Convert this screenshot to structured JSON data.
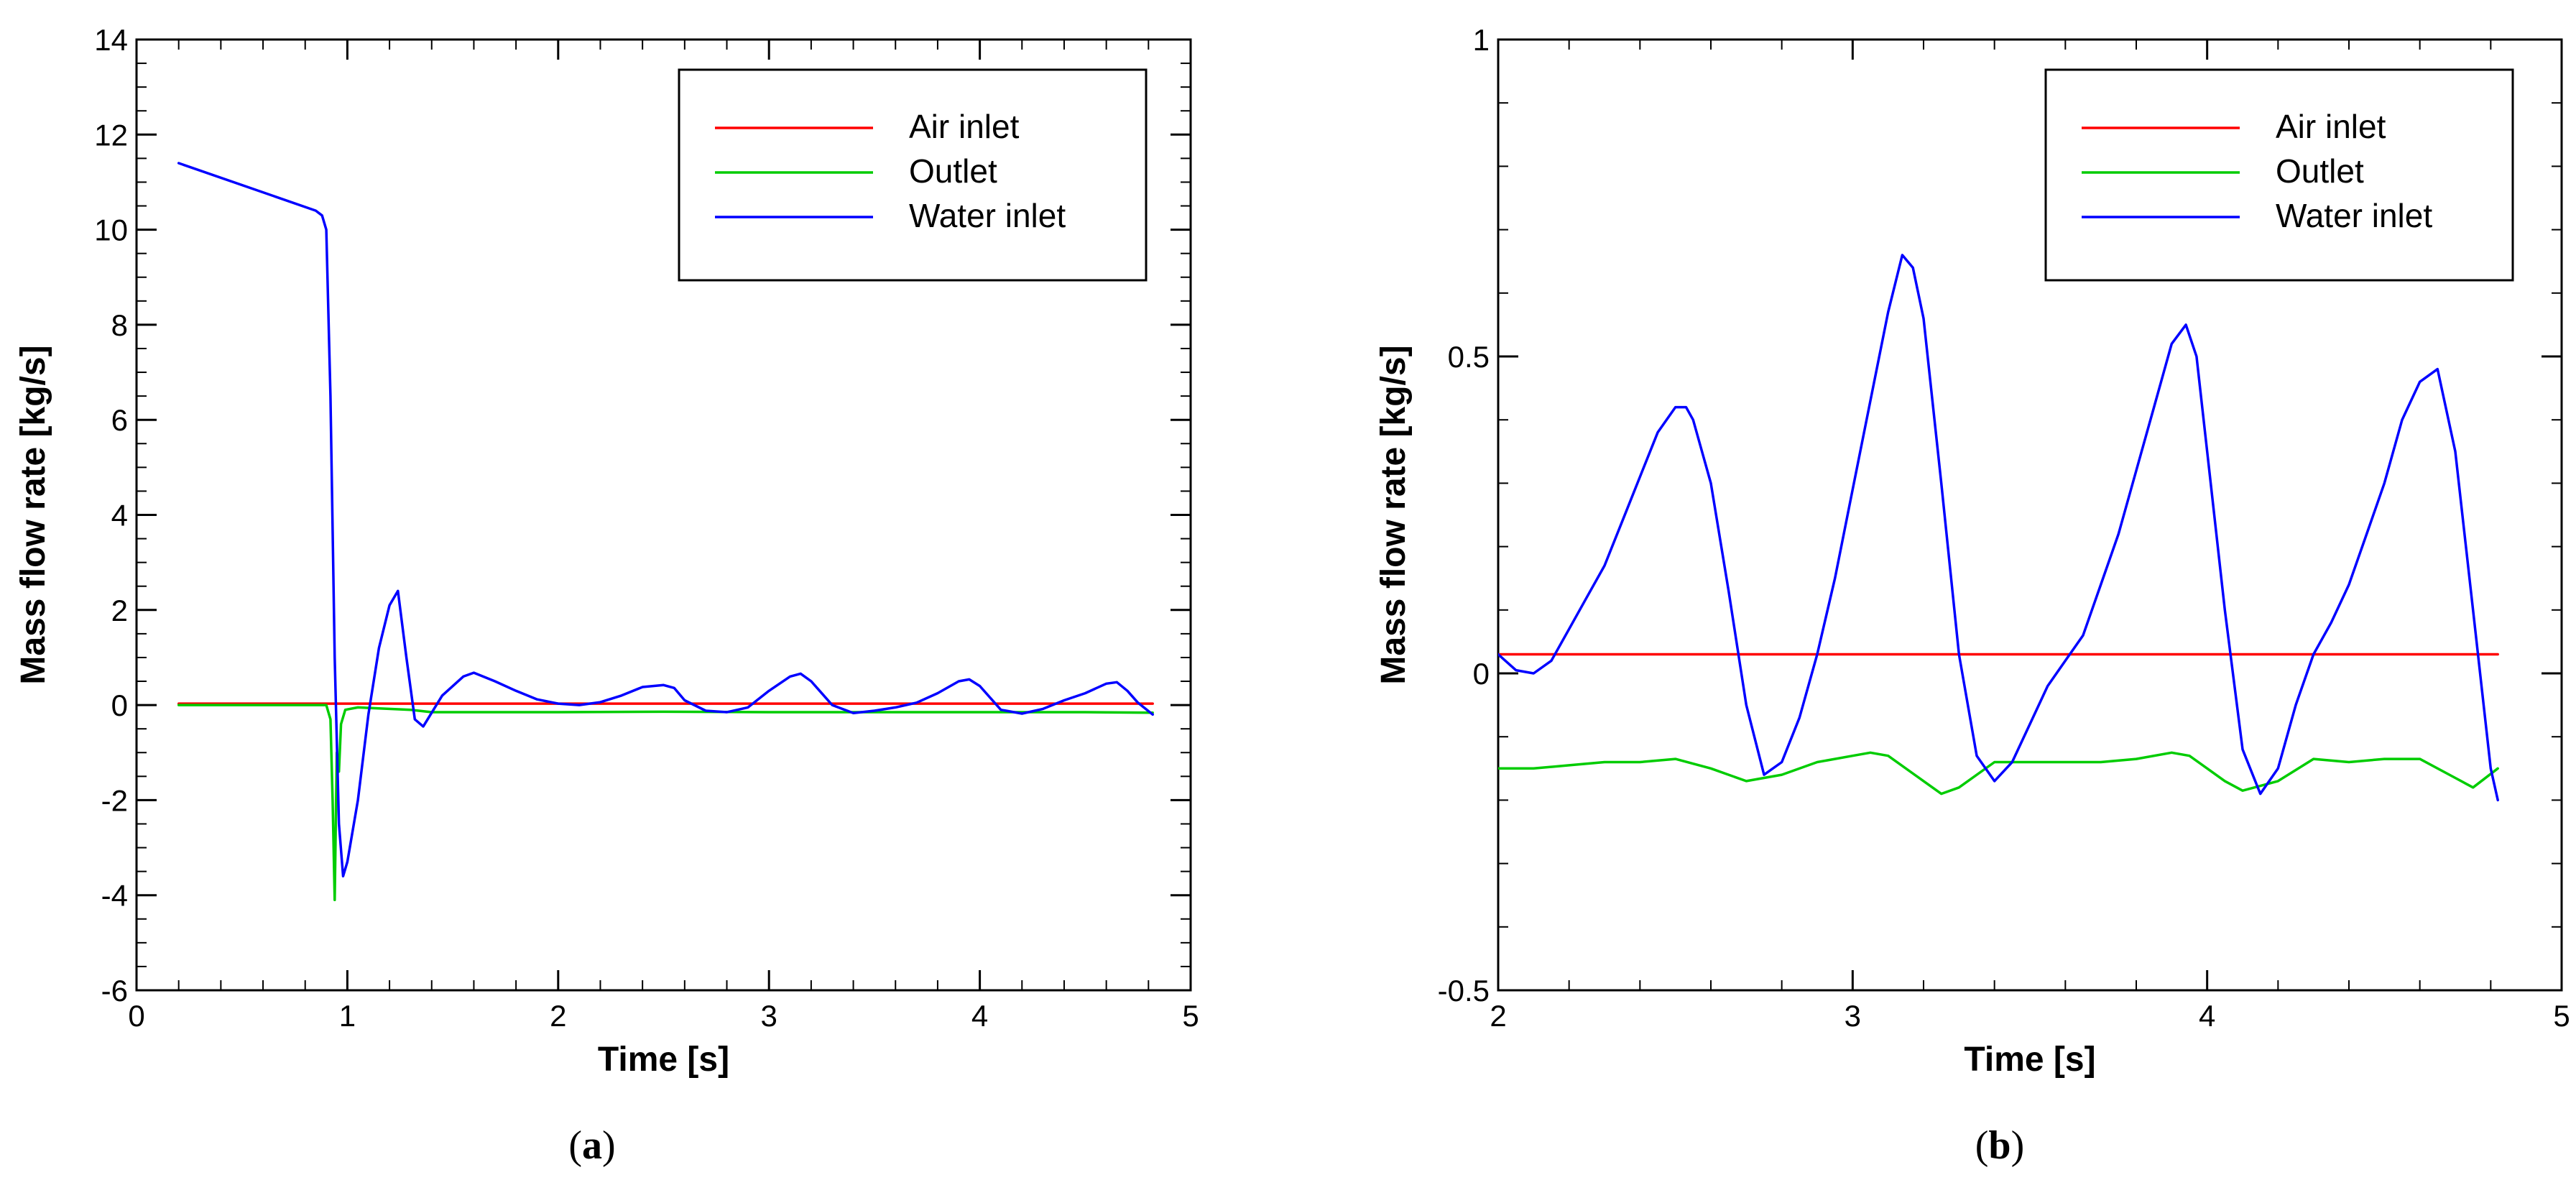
{
  "chart_data": [
    {
      "type": "line",
      "panel_label": "a",
      "xlabel": "Time [s]",
      "ylabel": "Mass flow rate [kg/s]",
      "xlim": [
        0,
        5
      ],
      "ylim": [
        -6,
        14
      ],
      "xticks": [
        0,
        1,
        2,
        3,
        4,
        5
      ],
      "xtick_labels": [
        "0",
        "1",
        "2",
        "3",
        "4",
        "5"
      ],
      "yticks": [
        -6,
        -4,
        -2,
        0,
        2,
        4,
        6,
        8,
        10,
        12,
        14
      ],
      "ytick_labels": [
        "-6",
        "-4",
        "-2",
        "0",
        "2",
        "4",
        "6",
        "8",
        "10",
        "12",
        "14"
      ],
      "grid": false,
      "legend_position": "top-right",
      "series": [
        {
          "name": "Air inlet",
          "color": "#ff0000",
          "x": [
            0.2,
            4.82
          ],
          "y": [
            0.03,
            0.03
          ]
        },
        {
          "name": "Outlet",
          "color": "#00cc00",
          "x": [
            0.2,
            0.9,
            0.92,
            0.93,
            0.94,
            0.95,
            0.96,
            0.97,
            0.99,
            1.05,
            1.3,
            1.4,
            1.6,
            1.8,
            2.0,
            2.5,
            3.0,
            3.5,
            4.0,
            4.5,
            4.82
          ],
          "y": [
            0.0,
            0.0,
            -0.3,
            -2.0,
            -4.1,
            -1.0,
            -1.4,
            -0.4,
            -0.1,
            -0.05,
            -0.1,
            -0.15,
            -0.15,
            -0.15,
            -0.15,
            -0.14,
            -0.15,
            -0.15,
            -0.15,
            -0.15,
            -0.16
          ]
        },
        {
          "name": "Water inlet",
          "color": "#0000ff",
          "x": [
            0.2,
            0.85,
            0.88,
            0.9,
            0.92,
            0.94,
            0.96,
            0.98,
            1.0,
            1.05,
            1.1,
            1.15,
            1.2,
            1.24,
            1.28,
            1.32,
            1.36,
            1.45,
            1.55,
            1.6,
            1.7,
            1.8,
            1.9,
            2.0,
            2.1,
            2.2,
            2.3,
            2.4,
            2.5,
            2.55,
            2.6,
            2.7,
            2.8,
            2.9,
            3.0,
            3.1,
            3.15,
            3.2,
            3.3,
            3.4,
            3.5,
            3.6,
            3.7,
            3.8,
            3.9,
            3.95,
            4.0,
            4.1,
            4.2,
            4.3,
            4.4,
            4.5,
            4.6,
            4.65,
            4.7,
            4.75,
            4.82
          ],
          "y": [
            11.4,
            10.4,
            10.3,
            10.0,
            6.5,
            1.0,
            -2.5,
            -3.6,
            -3.3,
            -2.0,
            -0.2,
            1.2,
            2.1,
            2.4,
            1.0,
            -0.3,
            -0.45,
            0.2,
            0.6,
            0.68,
            0.5,
            0.3,
            0.12,
            0.03,
            0.0,
            0.06,
            0.2,
            0.38,
            0.42,
            0.36,
            0.1,
            -0.12,
            -0.15,
            -0.05,
            0.3,
            0.6,
            0.66,
            0.5,
            0.0,
            -0.17,
            -0.12,
            -0.05,
            0.05,
            0.25,
            0.5,
            0.54,
            0.4,
            -0.1,
            -0.18,
            -0.08,
            0.1,
            0.25,
            0.45,
            0.48,
            0.3,
            0.05,
            -0.2
          ]
        }
      ]
    },
    {
      "type": "line",
      "panel_label": "b",
      "xlabel": "Time [s]",
      "ylabel": "Mass flow rate [kg/s]",
      "xlim": [
        2,
        5
      ],
      "ylim": [
        -0.5,
        1
      ],
      "xticks": [
        2,
        3,
        4,
        5
      ],
      "xtick_labels": [
        "2",
        "3",
        "4",
        "5"
      ],
      "yticks": [
        -0.5,
        0,
        0.5,
        1
      ],
      "ytick_labels": [
        "-0.5",
        "0",
        "0.5",
        "1"
      ],
      "grid": false,
      "legend_position": "top-right",
      "series": [
        {
          "name": "Air inlet",
          "color": "#ff0000",
          "x": [
            2.0,
            4.82
          ],
          "y": [
            0.03,
            0.03
          ]
        },
        {
          "name": "Outlet",
          "color": "#00cc00",
          "x": [
            2.0,
            2.1,
            2.2,
            2.3,
            2.4,
            2.5,
            2.6,
            2.65,
            2.7,
            2.8,
            2.9,
            3.0,
            3.05,
            3.1,
            3.2,
            3.25,
            3.3,
            3.4,
            3.5,
            3.6,
            3.7,
            3.8,
            3.9,
            3.95,
            4.0,
            4.05,
            4.1,
            4.2,
            4.3,
            4.4,
            4.5,
            4.6,
            4.7,
            4.75,
            4.82
          ],
          "y": [
            -0.15,
            -0.15,
            -0.145,
            -0.14,
            -0.14,
            -0.135,
            -0.15,
            -0.16,
            -0.17,
            -0.16,
            -0.14,
            -0.13,
            -0.125,
            -0.13,
            -0.17,
            -0.19,
            -0.18,
            -0.14,
            -0.14,
            -0.14,
            -0.14,
            -0.135,
            -0.125,
            -0.13,
            -0.15,
            -0.17,
            -0.185,
            -0.17,
            -0.135,
            -0.14,
            -0.135,
            -0.135,
            -0.165,
            -0.18,
            -0.15
          ]
        },
        {
          "name": "Water inlet",
          "color": "#0000ff",
          "x": [
            2.0,
            2.05,
            2.1,
            2.15,
            2.2,
            2.25,
            2.3,
            2.35,
            2.4,
            2.45,
            2.5,
            2.53,
            2.55,
            2.6,
            2.65,
            2.7,
            2.75,
            2.8,
            2.85,
            2.9,
            2.95,
            3.0,
            3.05,
            3.1,
            3.14,
            3.17,
            3.2,
            3.25,
            3.3,
            3.35,
            3.4,
            3.45,
            3.5,
            3.55,
            3.6,
            3.65,
            3.7,
            3.75,
            3.8,
            3.85,
            3.9,
            3.94,
            3.97,
            4.0,
            4.05,
            4.1,
            4.15,
            4.2,
            4.25,
            4.3,
            4.35,
            4.4,
            4.45,
            4.5,
            4.55,
            4.6,
            4.65,
            4.7,
            4.75,
            4.8,
            4.82
          ],
          "y": [
            0.03,
            0.005,
            0.0,
            0.02,
            0.07,
            0.12,
            0.17,
            0.24,
            0.31,
            0.38,
            0.42,
            0.42,
            0.4,
            0.3,
            0.13,
            -0.05,
            -0.16,
            -0.14,
            -0.07,
            0.03,
            0.15,
            0.29,
            0.43,
            0.57,
            0.66,
            0.64,
            0.56,
            0.3,
            0.03,
            -0.13,
            -0.17,
            -0.14,
            -0.08,
            -0.02,
            0.02,
            0.06,
            0.14,
            0.22,
            0.32,
            0.42,
            0.52,
            0.55,
            0.5,
            0.35,
            0.1,
            -0.12,
            -0.19,
            -0.15,
            -0.05,
            0.03,
            0.08,
            0.14,
            0.22,
            0.3,
            0.4,
            0.46,
            0.48,
            0.35,
            0.1,
            -0.15,
            -0.2
          ]
        }
      ]
    }
  ],
  "captions": {
    "a_prefix": "(",
    "a_letter": "a",
    "a_suffix": ")",
    "b_prefix": "(",
    "b_letter": "b",
    "b_suffix": ")"
  }
}
